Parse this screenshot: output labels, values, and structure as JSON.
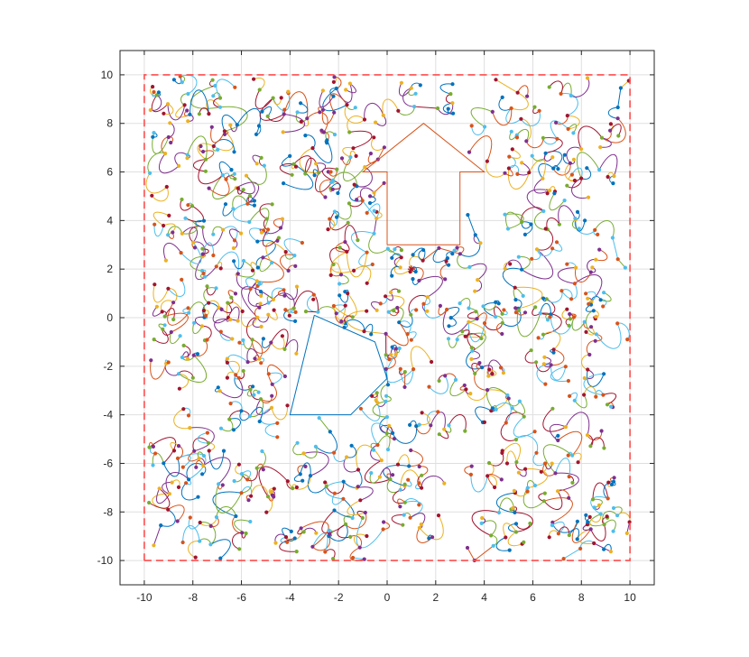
{
  "chart_data": {
    "type": "line",
    "title": "",
    "xlabel": "",
    "ylabel": "",
    "xlim": [
      -11,
      11
    ],
    "ylim": [
      -11,
      11
    ],
    "x_ticks": [
      -10,
      -8,
      -6,
      -4,
      -2,
      0,
      2,
      4,
      6,
      8,
      10
    ],
    "y_ticks": [
      -10,
      -8,
      -6,
      -4,
      -2,
      0,
      2,
      4,
      6,
      8,
      10
    ],
    "x_tick_labels": [
      "-10",
      "-8",
      "-6",
      "-4",
      "-2",
      "0",
      "2",
      "4",
      "6",
      "8",
      "10"
    ],
    "y_tick_labels": [
      "-10",
      "-8",
      "-6",
      "-4",
      "-2",
      "0",
      "2",
      "4",
      "6",
      "8",
      "10"
    ],
    "grid": true,
    "legend": "none",
    "boundary": {
      "style": "dashed",
      "color": "#ff4d4d",
      "points": [
        [
          -10,
          -10
        ],
        [
          10,
          -10
        ],
        [
          10,
          10
        ],
        [
          -10,
          10
        ],
        [
          -10,
          -10
        ]
      ]
    },
    "obstacles": [
      {
        "shape": "arrow",
        "color": "#d95319",
        "points": [
          [
            0,
            3
          ],
          [
            3,
            3
          ],
          [
            3,
            6
          ],
          [
            4,
            6
          ],
          [
            1.5,
            8
          ],
          [
            -1,
            6
          ],
          [
            0,
            6
          ],
          [
            0,
            3
          ]
        ]
      },
      {
        "shape": "pentagon",
        "color": "#0072bd",
        "points": [
          [
            -3,
            0.1
          ],
          [
            -0.5,
            -1
          ],
          [
            0,
            -2.5
          ],
          [
            -1.5,
            -4
          ],
          [
            -4,
            -4
          ],
          [
            -3,
            0.1
          ]
        ]
      }
    ],
    "start_marker": {
      "x": 1,
      "y": 2,
      "symbol": "*",
      "color": "#a2142f"
    },
    "series_colors": [
      "#0072bd",
      "#d95319",
      "#edb120",
      "#7e2f8e",
      "#77ac30",
      "#4dbeee",
      "#a2142f"
    ],
    "node_count": 900,
    "random_seed": 20240611
  }
}
